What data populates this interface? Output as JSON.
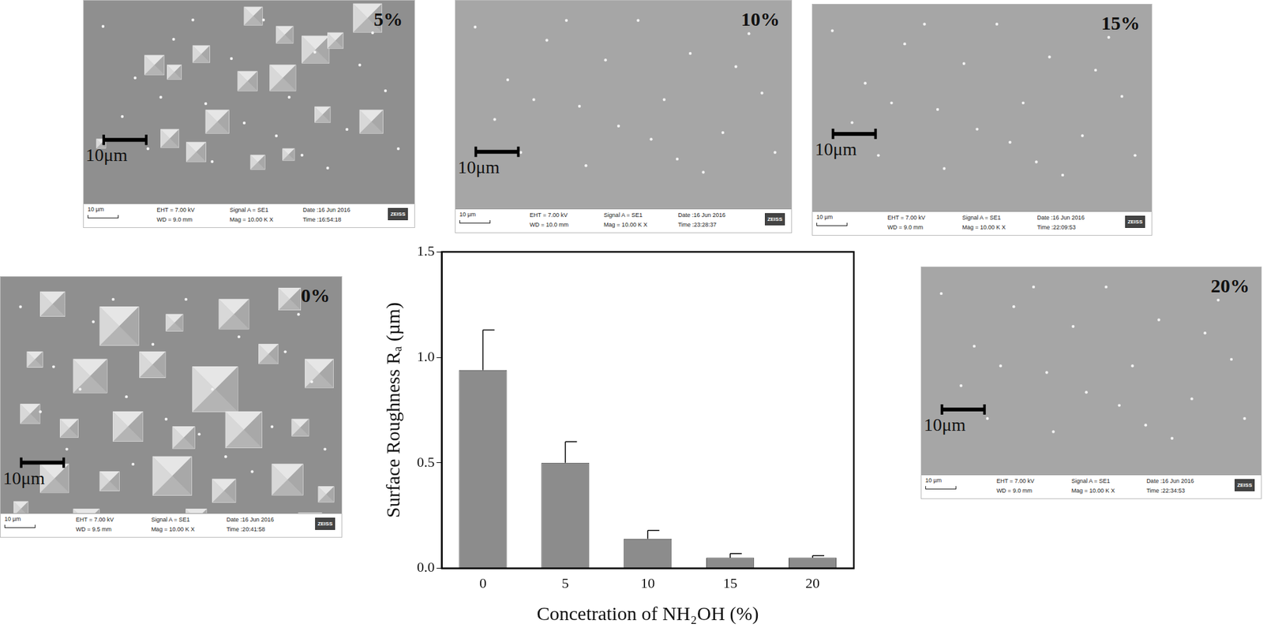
{
  "chart_data": {
    "type": "bar",
    "x_label": "Concetration of NH₂OH (%)",
    "y_label": "Surface Roughness Rₐ (µm)",
    "categories": [
      "0",
      "5",
      "10",
      "15",
      "20"
    ],
    "values": [
      0.94,
      0.5,
      0.14,
      0.05,
      0.05
    ],
    "errors": [
      0.19,
      0.1,
      0.04,
      0.02,
      0.01
    ],
    "color": "#8c8c8c",
    "ylim": [
      0,
      1.5
    ],
    "yticks": [
      {
        "value": 0,
        "label": "0.0"
      },
      {
        "value": 0.5,
        "label": "0.5"
      },
      {
        "value": 1,
        "label": "1.0"
      },
      {
        "value": 1.5,
        "label": "1.5"
      }
    ],
    "grid": false
  },
  "panels": [
    {
      "label": "0%",
      "scale_bar": "10μm",
      "info": {
        "scale": "10 µm",
        "eht": "EHT = 7.00 kV",
        "wd": "WD = 9.5 mm",
        "signal": "Signal A = SE1",
        "mag": "Mag = 10.00 K X",
        "date": "Date :16 Jun 2016",
        "time": "Time :20:41:58",
        "brand": "ZEISS"
      }
    },
    {
      "label": "5%",
      "scale_bar": "10μm",
      "info": {
        "scale": "10 µm",
        "eht": "EHT = 7.00 kV",
        "wd": "WD = 9.0 mm",
        "signal": "Signal A = SE1",
        "mag": "Mag = 10.00 K X",
        "date": "Date :16 Jun 2016",
        "time": "Time :16:54:18",
        "brand": "ZEISS"
      }
    },
    {
      "label": "10%",
      "scale_bar": "10μm",
      "info": {
        "scale": "10 µm",
        "eht": "EHT = 7.00 kV",
        "wd": "WD = 10.0 mm",
        "signal": "Signal A = SE1",
        "mag": "Mag = 10.00 K X",
        "date": "Date :16 Jun 2016",
        "time": "Time :23:28:37",
        "brand": "ZEISS"
      }
    },
    {
      "label": "15%",
      "scale_bar": "10μm",
      "info": {
        "scale": "10 µm",
        "eht": "EHT = 7.00 kV",
        "wd": "WD = 9.0 mm",
        "signal": "Signal A = SE1",
        "mag": "Mag = 10.00 K X",
        "date": "Date :16 Jun 2016",
        "time": "Time :22:09:53",
        "brand": "ZEISS"
      }
    },
    {
      "label": "20%",
      "scale_bar": "10μm",
      "info": {
        "scale": "10 µm",
        "eht": "EHT = 7.00 kV",
        "wd": "WD = 9.0 mm",
        "signal": "Signal A = SE1",
        "mag": "Mag = 10.00 K X",
        "date": "Date :16 Jun 2016",
        "time": "Time :22:34:53",
        "brand": "ZEISS"
      }
    }
  ]
}
